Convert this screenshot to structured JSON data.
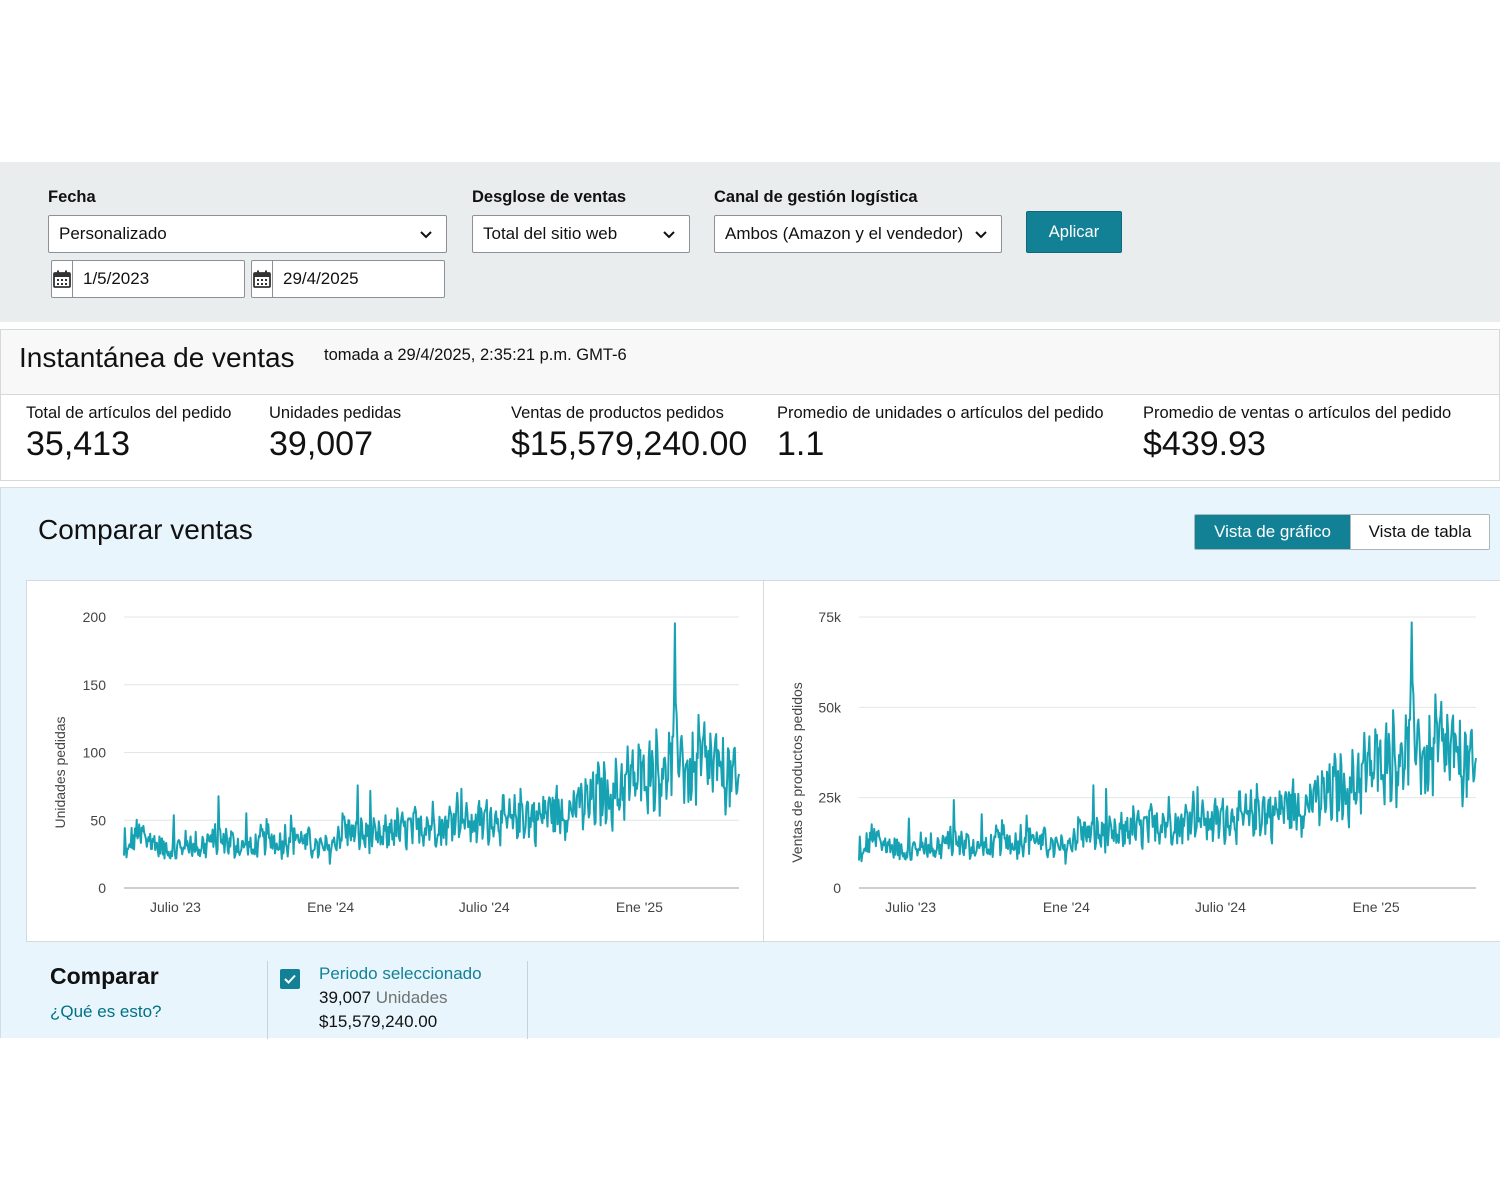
{
  "filters": {
    "date_label": "Fecha",
    "date_range_value": "Personalizado",
    "start_date": "1/5/2023",
    "end_date": "29/4/2025",
    "breakdown_label": "Desglose de ventas",
    "breakdown_value": "Total del sitio web",
    "channel_label": "Canal de gestión logística",
    "channel_value": "Ambos (Amazon y el vendedor)",
    "apply_label": "Aplicar"
  },
  "snapshot": {
    "title": "Instantánea de ventas",
    "timestamp": "tomada a 29/4/2025, 2:35:21 p.m. GMT-6",
    "metrics": [
      {
        "label": "Total de artículos del pedido",
        "value": "35,413"
      },
      {
        "label": "Unidades pedidas",
        "value": "39,007"
      },
      {
        "label": "Ventas de productos pedidos",
        "value": "$15,579,240.00"
      },
      {
        "label": "Promedio de unidades o artículos del pedido",
        "value": "1.1"
      },
      {
        "label": "Promedio de ventas o artículos del pedido",
        "value": "$439.93"
      }
    ]
  },
  "compare": {
    "title": "Comparar ventas",
    "chart_view_label": "Vista de gráfico",
    "table_view_label": "Vista de tabla",
    "heading": "Comparar",
    "help_link": "¿Qué es esto?",
    "period_title": "Periodo seleccionado",
    "period_units_value": "39,007",
    "period_units_suffix": "Unidades",
    "period_sales": "$15,579,240.00"
  },
  "colors": {
    "accent": "#138195",
    "series": "#17a2b3",
    "filter_bg": "#eaeded",
    "compare_bg": "#e8f5fd"
  },
  "chart_data": [
    {
      "type": "line",
      "title": "",
      "xlabel": "",
      "ylabel": "Unidades pedidas",
      "x_ticks": [
        "Julio '23",
        "Ene '24",
        "Julio '24",
        "Ene '25"
      ],
      "y_ticks": [
        "0",
        "50",
        "100",
        "150",
        "200"
      ],
      "ylim": [
        0,
        200
      ],
      "xlim": [
        "2023-05-01",
        "2025-04-29"
      ],
      "grid": true,
      "series": [
        {
          "x": [
            "2023-05-01",
            "2023-05-15",
            "2023-06-01",
            "2023-06-15",
            "2023-07-01",
            "2023-07-15",
            "2023-08-01",
            "2023-08-15",
            "2023-09-01",
            "2023-09-15",
            "2023-10-01",
            "2023-10-15",
            "2023-11-01",
            "2023-11-15",
            "2023-12-01",
            "2023-12-15",
            "2024-01-01",
            "2024-01-15",
            "2024-02-01",
            "2024-02-15",
            "2024-03-01",
            "2024-03-15",
            "2024-04-01",
            "2024-04-15",
            "2024-05-01",
            "2024-05-15",
            "2024-06-01",
            "2024-06-15",
            "2024-07-01",
            "2024-07-15",
            "2024-08-01",
            "2024-08-15",
            "2024-09-01",
            "2024-09-15",
            "2024-10-01",
            "2024-10-15",
            "2024-11-01",
            "2024-11-15",
            "2024-12-01",
            "2024-12-15",
            "2025-01-01",
            "2025-01-15",
            "2025-02-01",
            "2025-02-15",
            "2025-03-01",
            "2025-03-15",
            "2025-04-01",
            "2025-04-15",
            "2025-04-29"
          ],
          "values": [
            22,
            40,
            35,
            30,
            28,
            33,
            30,
            36,
            35,
            30,
            28,
            38,
            32,
            40,
            35,
            30,
            28,
            45,
            40,
            38,
            36,
            44,
            42,
            46,
            48,
            44,
            58,
            46,
            50,
            52,
            48,
            56,
            50,
            58,
            55,
            60,
            62,
            70,
            68,
            78,
            82,
            90,
            84,
            108,
            80,
            95,
            88,
            84,
            75
          ]
        }
      ]
    },
    {
      "type": "line",
      "title": "",
      "xlabel": "",
      "ylabel": "Ventas de productos pedidos",
      "x_ticks": [
        "Julio '23",
        "Ene '24",
        "Julio '24",
        "Ene '25"
      ],
      "y_ticks": [
        "0",
        "25k",
        "50k",
        "75k"
      ],
      "ylim": [
        0,
        75000
      ],
      "xlim": [
        "2023-05-01",
        "2025-04-29"
      ],
      "grid": true,
      "series": [
        {
          "x": [
            "2023-05-01",
            "2023-05-15",
            "2023-06-01",
            "2023-06-15",
            "2023-07-01",
            "2023-07-15",
            "2023-08-01",
            "2023-08-15",
            "2023-09-01",
            "2023-09-15",
            "2023-10-01",
            "2023-10-15",
            "2023-11-01",
            "2023-11-15",
            "2023-12-01",
            "2023-12-15",
            "2024-01-01",
            "2024-01-15",
            "2024-02-01",
            "2024-02-15",
            "2024-03-01",
            "2024-03-15",
            "2024-04-01",
            "2024-04-15",
            "2024-05-01",
            "2024-05-15",
            "2024-06-01",
            "2024-06-15",
            "2024-07-01",
            "2024-07-15",
            "2024-08-01",
            "2024-08-15",
            "2024-09-01",
            "2024-09-15",
            "2024-10-01",
            "2024-10-15",
            "2024-11-01",
            "2024-11-15",
            "2024-12-01",
            "2024-12-15",
            "2025-01-01",
            "2025-01-15",
            "2025-02-01",
            "2025-02-15",
            "2025-03-01",
            "2025-03-15",
            "2025-04-01",
            "2025-04-15",
            "2025-04-29"
          ],
          "values": [
            7000,
            14000,
            12000,
            11000,
            10000,
            12000,
            11000,
            13000,
            12500,
            11000,
            10500,
            14000,
            12000,
            15000,
            13000,
            11500,
            10500,
            16000,
            15000,
            14500,
            14000,
            17000,
            16000,
            18000,
            19000,
            17000,
            22000,
            18000,
            19000,
            20000,
            19000,
            22000,
            20000,
            23000,
            22000,
            24000,
            25000,
            28000,
            27000,
            32000,
            34000,
            38000,
            35000,
            45000,
            33000,
            40000,
            37000,
            35000,
            32000
          ]
        }
      ]
    }
  ]
}
